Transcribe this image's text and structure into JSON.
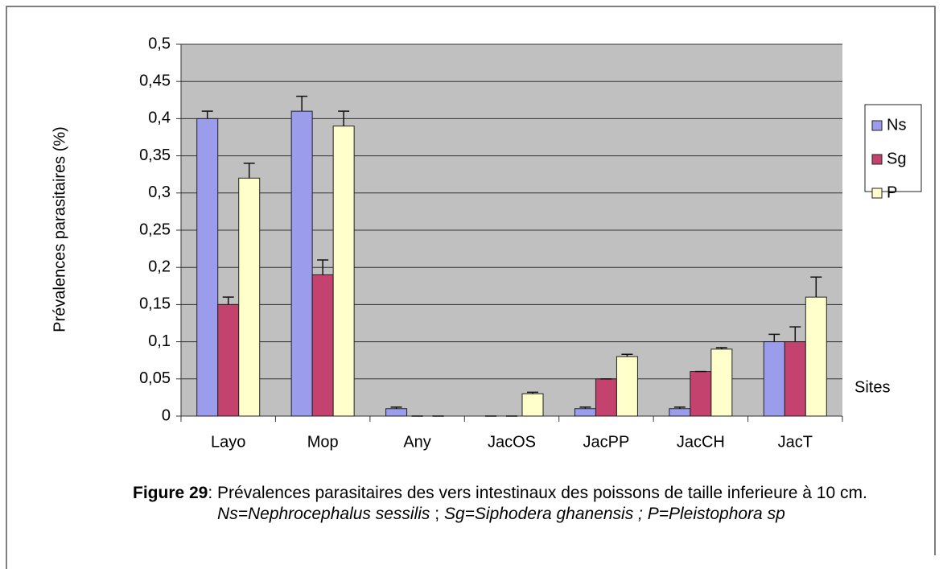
{
  "chart_data": {
    "type": "bar",
    "y_label": "Prévalences parasitaires (%)",
    "annotation": "Sites",
    "categories": [
      "Layo",
      "Mop",
      "Any",
      "JacOS",
      "JacPP",
      "JacCH",
      "JacT"
    ],
    "series": [
      {
        "name": "Ns",
        "color": "#9c9cec",
        "values": [
          0.4,
          0.41,
          0.01,
          0,
          0.01,
          0.01,
          0.1
        ],
        "errors": [
          0.01,
          0.02,
          0.002,
          0,
          0.002,
          0.002,
          0.01
        ]
      },
      {
        "name": "Sg",
        "color": "#c4426e",
        "values": [
          0.15,
          0.19,
          0,
          0,
          0.05,
          0.06,
          0.1
        ],
        "errors": [
          0.01,
          0.02,
          0,
          0,
          0,
          0,
          0.02
        ]
      },
      {
        "name": "P",
        "color": "#ffffcc",
        "values": [
          0.32,
          0.39,
          0,
          0.03,
          0.08,
          0.09,
          0.16
        ],
        "errors": [
          0.02,
          0.02,
          0,
          0.002,
          0.003,
          0.002,
          0.027
        ]
      }
    ],
    "ylim": [
      0,
      0.5
    ],
    "yticks": [
      0,
      {
        "value": 0.05,
        "label": "0,05"
      },
      {
        "value": 0.1,
        "label": "0,1"
      },
      {
        "value": 0.15,
        "label": "0,15"
      },
      {
        "value": 0.2,
        "label": "0,2"
      },
      {
        "value": 0.25,
        "label": "0,25"
      },
      {
        "value": 0.3,
        "label": "0,3"
      },
      {
        "value": 0.35,
        "label": "0,35"
      },
      {
        "value": 0.4,
        "label": "0,4"
      },
      {
        "value": 0.45,
        "label": "0,45"
      },
      {
        "value": 0.5,
        "label": "0,5"
      }
    ],
    "grid": true,
    "legend": "right"
  },
  "caption": {
    "parts": [
      "Figure 29",
      ": ",
      "Prévalences parasitaires des vers intestinaux des poissons de taille inferieure à 10 cm. ",
      "Ns=Nephrocephalus sessilis",
      " ; ",
      "Sg=Siphodera ghanensis ; P=Pleistophora sp"
    ]
  }
}
